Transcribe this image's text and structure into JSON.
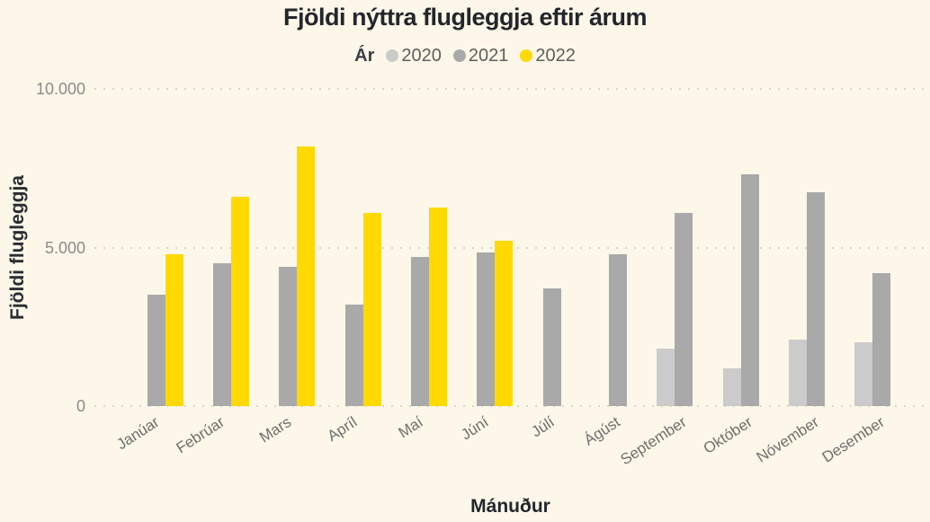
{
  "title": "Fjöldi nýttra flugleggja eftir árum",
  "legend": {
    "title": "Ár",
    "items": [
      {
        "label": "2020",
        "color": "#CBCBCB"
      },
      {
        "label": "2021",
        "color": "#A9A9A9"
      },
      {
        "label": "2022",
        "color": "#FFD900"
      }
    ]
  },
  "chart_data": {
    "type": "bar",
    "title": "Fjöldi nýttra flugleggja eftir árum",
    "xlabel": "Mánuður",
    "ylabel": "Fjöldi flugleggja",
    "ylim": [
      0,
      10000
    ],
    "grid": "horizontal-dotted",
    "legend_position": "top",
    "yticks": [
      {
        "value": 10000,
        "label": "10.000"
      },
      {
        "value": 5000,
        "label": "5.000"
      },
      {
        "value": 0,
        "label": "0"
      }
    ],
    "categories": [
      "Janúar",
      "Febrúar",
      "Mars",
      "Apríl",
      "Maí",
      "Júní",
      "Júlí",
      "Ágúst",
      "September",
      "Október",
      "Nóvember",
      "Desember"
    ],
    "series": [
      {
        "name": "2020",
        "color": "#CBCBCB",
        "values": [
          null,
          null,
          null,
          null,
          null,
          null,
          null,
          null,
          1800,
          1200,
          2100,
          2000
        ]
      },
      {
        "name": "2021",
        "color": "#A9A9A9",
        "values": [
          3500,
          4500,
          4400,
          3200,
          4700,
          4850,
          3700,
          4800,
          6100,
          7300,
          6750,
          4200
        ]
      },
      {
        "name": "2022",
        "color": "#FFD900",
        "values": [
          4800,
          6600,
          8200,
          6100,
          6250,
          5200,
          null,
          null,
          null,
          null,
          null,
          null
        ]
      }
    ]
  },
  "colors": {
    "background": "#FCF7E8",
    "title_text": "#23262C",
    "tick_text": "#8B8B8B",
    "xlabel_text": "#6F6F6F",
    "grid_dots": "#DAD4C3"
  }
}
